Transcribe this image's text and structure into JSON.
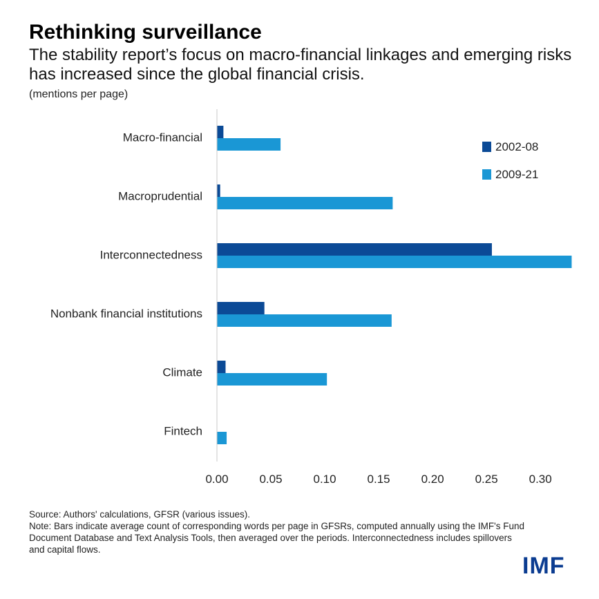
{
  "header": {
    "title": "Rethinking surveillance",
    "subtitle": "The stability report’s focus on macro-financial linkages and emerging risks has increased since the global financial crisis.",
    "unit": "(mentions per page)"
  },
  "chart_data": {
    "type": "bar",
    "orientation": "horizontal",
    "categories": [
      "Macro-financial",
      "Macroprudential",
      "Interconnectedness",
      "Nonbank financial institutions",
      "Climate",
      "Fintech"
    ],
    "series": [
      {
        "name": "2002-08",
        "color": "#0b4a96",
        "values": [
          0.006,
          0.003,
          0.255,
          0.044,
          0.008,
          0.0
        ]
      },
      {
        "name": "2009-21",
        "color": "#1a97d5",
        "values": [
          0.059,
          0.163,
          0.329,
          0.162,
          0.102,
          0.009
        ]
      }
    ],
    "xlim": [
      0,
      0.33
    ],
    "ticks": [
      "0.00",
      "0.05",
      "0.10",
      "0.15",
      "0.20",
      "0.25",
      "0.30"
    ],
    "tick_values": [
      0,
      0.05,
      0.1,
      0.15,
      0.2,
      0.25,
      0.3
    ],
    "legend_position": "top-right",
    "grid": false
  },
  "footer": {
    "source": "Source: Authors' calculations, GFSR (various issues).",
    "note": "Note: Bars indicate average count of corresponding words per page in GFSRs, computed annually using the IMF's Fund Document Database and Text Analysis Tools, then averaged over the periods. Interconnectedness includes spillovers and capital flows.",
    "logo": "IMF"
  }
}
